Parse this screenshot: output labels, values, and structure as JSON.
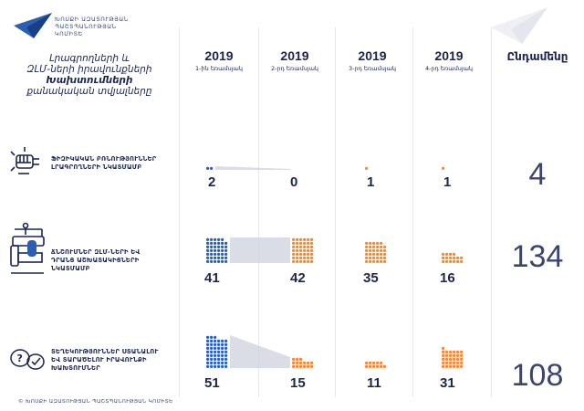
{
  "header": {
    "org_lines": [
      "ԽՈՍՔԻ ԱԶԱՏՈՒԹՅԱՆ",
      "ՊԱՇՏՊԱՆՈՒԹՅԱՆ",
      "ԿՈՄԻՏԵ"
    ],
    "title_lines": [
      "Լրագրողների և",
      "ԶԼՄ-ների իրավունքների",
      "Խախտումների",
      "քանակական տվյալները"
    ]
  },
  "footer": {
    "text": "© ԽՈՍՔԻ ԱԶԱՏՈՒԹՅԱՆ ՊԱՇՏՊԱՆՈՒԹՅԱՆ ԿՈՄԻՏԵ"
  },
  "colors": {
    "blue": "#2b5fb4",
    "orange": "#ef8a3a",
    "navy": "#1b2550",
    "connector": "#cdd2dc"
  },
  "chart_data": {
    "type": "table",
    "total_header": "Ընդամենը",
    "columns": [
      {
        "year": "2019",
        "quarter": "1-ին եռամսյակ"
      },
      {
        "year": "2019",
        "quarter": "2-րդ եռամսյակ"
      },
      {
        "year": "2019",
        "quarter": "3-րդ եռամսյակ"
      },
      {
        "year": "2019",
        "quarter": "4-րդ եռամսյակ"
      }
    ],
    "rows": [
      {
        "label": "ՖԻԶԻԿԱԿԱՆ ԲՌՆՈՒԹՅՈՒՆՆԵՐ ԼՐԱԳՐՈՂՆԵՐԻ ՆԿԱՏՄԱՄԲ",
        "icon": "fist-icon",
        "values": [
          2,
          0,
          1,
          1
        ],
        "total": "4"
      },
      {
        "label": "ՃՆՇՈՒՄՆԵՐ ԶԼՄ-ՆԵՐԻ ԵՎ ԴՐԱՆՑ ԱՇԽԱՏԱԿԻՑՆԵՐԻ ՆԿԱՏՄԱՄԲ",
        "icon": "press-icon",
        "values": [
          41,
          42,
          35,
          16
        ],
        "total": "134"
      },
      {
        "label": "ՏԵՂԵԿՈՒԹՅՈՒՆՆԵՐ ՍՏԱՆԱԼՈՒ ԵՎ ՏԱՐԱԾԵԼՈՒ ԻՐԱՎՈՒՆՔԻ ԽԱԽՏՈՒՄՆԵՐ",
        "icon": "question-chat-icon",
        "values": [
          51,
          15,
          11,
          31
        ],
        "total": "108"
      }
    ]
  }
}
